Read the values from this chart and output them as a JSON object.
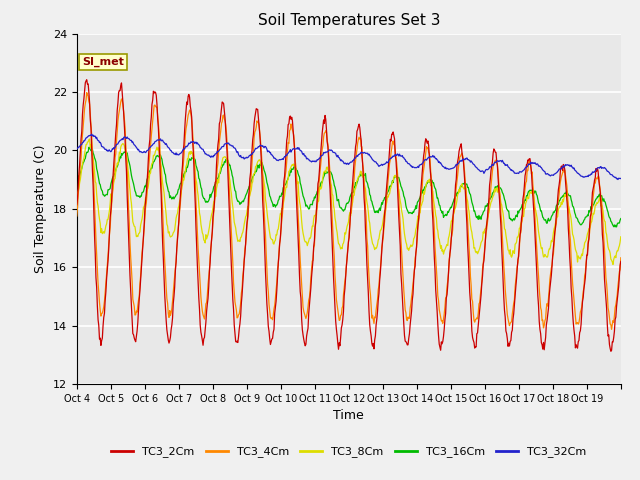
{
  "title": "Soil Temperatures Set 3",
  "xlabel": "Time",
  "ylabel": "Soil Temperature (C)",
  "ylim": [
    12,
    24
  ],
  "yticks": [
    12,
    14,
    16,
    18,
    20,
    22,
    24
  ],
  "xtick_labels": [
    "Oct 4",
    "Oct 5",
    "Oct 6",
    "Oct 7",
    "Oct 8",
    "Oct 9",
    "Oct 10",
    "Oct 11",
    "Oct 12",
    "Oct 13",
    "Oct 14",
    "Oct 15",
    "Oct 16",
    "Oct 17",
    "Oct 18",
    "Oct 19"
  ],
  "series_colors": [
    "#cc0000",
    "#ff8800",
    "#dddd00",
    "#00bb00",
    "#2222cc"
  ],
  "series_labels": [
    "TC3_2Cm",
    "TC3_4Cm",
    "TC3_8Cm",
    "TC3_16Cm",
    "TC3_32Cm"
  ],
  "annotation_text": "SI_met",
  "fig_bg": "#f0f0f0",
  "axes_bg": "#e8e8e8",
  "grid_color": "#ffffff"
}
